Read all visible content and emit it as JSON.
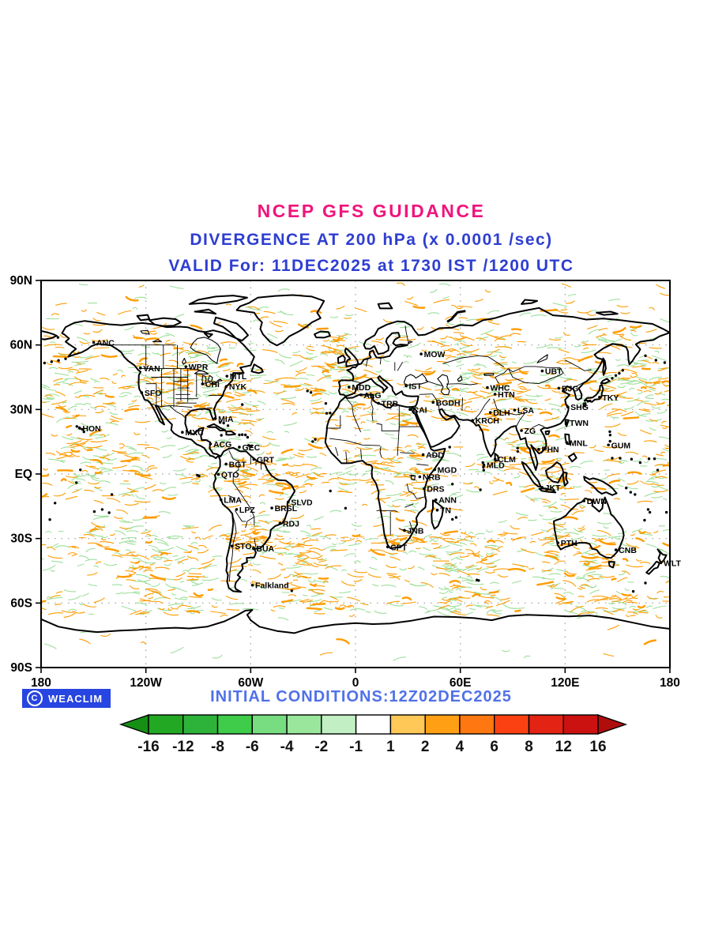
{
  "header": {
    "line1": "NCEP GFS GUIDANCE",
    "line2": "DIVERGENCE AT 200 hPa (x 0.0001 /sec)",
    "line3": "VALID For: 11DEC2025 at 1730 IST /1200 UTC",
    "line1_color": "#f0147d",
    "line23_color": "#2e3ed1"
  },
  "footer": {
    "copyright_symbol": "C",
    "watermark": "WEACLIM",
    "badge_bg": "#2745e0",
    "initial_conditions": "INITIAL CONDITIONS:12Z02DEC2025",
    "initial_conditions_color": "#5071e9"
  },
  "chart_data": {
    "type": "heatmap",
    "title": "NCEP GFS GUIDANCE",
    "subtitle": "DIVERGENCE AT 200 hPa (x 0.0001 /sec)",
    "valid_label": "VALID For: 11DEC2025 at 1730 IST /1200 UTC",
    "initial_conditions": "12Z02DEC2025",
    "field": "divergence at 200 hPa",
    "field_units": "x 0.0001 /sec",
    "projection": "equirectangular",
    "lon_range": [
      -180,
      180
    ],
    "lat_range": [
      -90,
      90
    ],
    "grid": "dotted",
    "lat_ticks": [
      {
        "label": "90N",
        "lat": 90
      },
      {
        "label": "60N",
        "lat": 60
      },
      {
        "label": "30N",
        "lat": 30
      },
      {
        "label": "EQ",
        "lat": 0
      },
      {
        "label": "30S",
        "lat": -30
      },
      {
        "label": "60S",
        "lat": -60
      },
      {
        "label": "90S",
        "lat": -90
      }
    ],
    "lon_ticks": [
      {
        "label": "180",
        "lon": -180
      },
      {
        "label": "120W",
        "lon": -120
      },
      {
        "label": "60W",
        "lon": -60
      },
      {
        "label": "0",
        "lon": 0
      },
      {
        "label": "60E",
        "lon": 60
      },
      {
        "label": "120E",
        "lon": 120
      },
      {
        "label": "180",
        "lon": 180
      }
    ],
    "field_colors": {
      "positive": "#ff9c00",
      "negative": "#9ddf9b"
    },
    "colorbar": {
      "labels": [
        "-16",
        "-12",
        "-8",
        "-6",
        "-4",
        "-2",
        "-1",
        "1",
        "2",
        "4",
        "6",
        "8",
        "12",
        "16"
      ],
      "segment_colors": [
        "#22a822",
        "#2eb33a",
        "#3ecc4a",
        "#77dd80",
        "#9ae69c",
        "#c2efc4",
        "#ffffff",
        "#ffc857",
        "#ffa014",
        "#ff7711",
        "#fb4112",
        "#e32313",
        "#cc1111"
      ],
      "arrow_left_color": "#159015",
      "arrow_right_color": "#b00d0d"
    },
    "city_labels": [
      {
        "code": "ANC",
        "lon": -149.9,
        "lat": 61.2
      },
      {
        "code": "VAN",
        "lon": -123.1,
        "lat": 49.3
      },
      {
        "code": "WPR",
        "lon": -97.1,
        "lat": 49.9
      },
      {
        "code": "SFO",
        "lon": -122.4,
        "lat": 37.8
      },
      {
        "code": "CHI",
        "lon": -87.6,
        "lat": 41.9
      },
      {
        "code": "NYK",
        "lon": -74.0,
        "lat": 40.7
      },
      {
        "code": "MTL",
        "lon": -73.6,
        "lat": 45.5
      },
      {
        "code": "MIA",
        "lon": -80.2,
        "lat": 25.8
      },
      {
        "code": "HON",
        "lon": -157.9,
        "lat": 21.3
      },
      {
        "code": "MXC",
        "lon": -99.1,
        "lat": 19.4
      },
      {
        "code": "ACG",
        "lon": -83.0,
        "lat": 14.0
      },
      {
        "code": "GEC",
        "lon": -66.5,
        "lat": 12.5
      },
      {
        "code": "GRT",
        "lon": -58.2,
        "lat": 6.8
      },
      {
        "code": "BGT",
        "lon": -74.1,
        "lat": 4.6
      },
      {
        "code": "QTO",
        "lon": -78.5,
        "lat": -0.2
      },
      {
        "code": "LMA",
        "lon": -77.0,
        "lat": -12.0
      },
      {
        "code": "LPZ",
        "lon": -68.1,
        "lat": -16.5
      },
      {
        "code": "SLVD",
        "lon": -38.5,
        "lat": -13.0
      },
      {
        "code": "BRSL",
        "lon": -47.9,
        "lat": -15.8
      },
      {
        "code": "RDJ",
        "lon": -43.2,
        "lat": -22.9
      },
      {
        "code": "STO",
        "lon": -70.7,
        "lat": -33.5
      },
      {
        "code": "BUA",
        "lon": -58.4,
        "lat": -34.6
      },
      {
        "code": "Falkland",
        "lon": -59.0,
        "lat": -51.7
      },
      {
        "code": "MDD",
        "lon": -3.7,
        "lat": 40.4
      },
      {
        "code": "ALG",
        "lon": 3.1,
        "lat": 36.8
      },
      {
        "code": "IST",
        "lon": 29.0,
        "lat": 41.0
      },
      {
        "code": "TRB",
        "lon": 13.2,
        "lat": 32.9
      },
      {
        "code": "CAI",
        "lon": 31.2,
        "lat": 30.0
      },
      {
        "code": "MOW",
        "lon": 37.6,
        "lat": 55.8
      },
      {
        "code": "BGDH",
        "lon": 44.4,
        "lat": 33.3
      },
      {
        "code": "ADD",
        "lon": 38.7,
        "lat": 9.0
      },
      {
        "code": "MGD",
        "lon": 45.3,
        "lat": 2.0
      },
      {
        "code": "NRB",
        "lon": 36.8,
        "lat": -1.3
      },
      {
        "code": "DRS",
        "lon": 39.3,
        "lat": -6.8
      },
      {
        "code": "ANN",
        "lon": 46.0,
        "lat": -12.0
      },
      {
        "code": "TN",
        "lon": 46.8,
        "lat": -16.8
      },
      {
        "code": "JNB",
        "lon": 28.0,
        "lat": -26.2
      },
      {
        "code": "CPT",
        "lon": 18.4,
        "lat": -33.9
      },
      {
        "code": "KRCH",
        "lon": 67.0,
        "lat": 24.9
      },
      {
        "code": "WHC",
        "lon": 75.5,
        "lat": 40.2
      },
      {
        "code": "HTN",
        "lon": 79.9,
        "lat": 37.1
      },
      {
        "code": "LSA",
        "lon": 91.1,
        "lat": 29.7
      },
      {
        "code": "DLH",
        "lon": 77.2,
        "lat": 28.6
      },
      {
        "code": "ZG",
        "lon": 95.0,
        "lat": 20.2
      },
      {
        "code": "CLM",
        "lon": 79.9,
        "lat": 6.9
      },
      {
        "code": "MLD",
        "lon": 73.5,
        "lat": 4.2
      },
      {
        "code": "UBT",
        "lon": 106.9,
        "lat": 47.9
      },
      {
        "code": "BJG",
        "lon": 116.4,
        "lat": 39.9
      },
      {
        "code": "TKY",
        "lon": 139.7,
        "lat": 35.7
      },
      {
        "code": "SHG",
        "lon": 121.5,
        "lat": 31.2
      },
      {
        "code": "TWN",
        "lon": 121.0,
        "lat": 23.8
      },
      {
        "code": "PHN",
        "lon": 104.9,
        "lat": 11.5
      },
      {
        "code": "MNL",
        "lon": 121.0,
        "lat": 14.6
      },
      {
        "code": "GUM",
        "lon": 144.8,
        "lat": 13.5
      },
      {
        "code": "JKT",
        "lon": 106.8,
        "lat": -6.2
      },
      {
        "code": "DWN",
        "lon": 130.8,
        "lat": -12.5
      },
      {
        "code": "PTH",
        "lon": 115.9,
        "lat": -32.0
      },
      {
        "code": "CNB",
        "lon": 149.1,
        "lat": -35.3
      },
      {
        "code": "WLT",
        "lon": 174.8,
        "lat": -41.3
      }
    ]
  }
}
